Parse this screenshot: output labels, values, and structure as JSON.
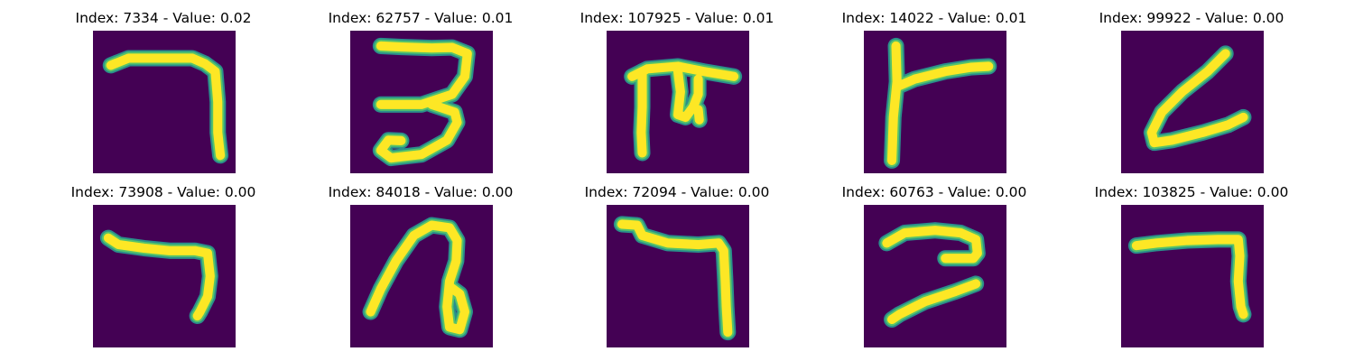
{
  "colors": {
    "background": "#440154",
    "edge": "#2a8f8b",
    "mid": "#55c36a",
    "stroke": "#fde725"
  },
  "images": [
    {
      "title": "Index: 7334 - Value: 0.02",
      "depicts": "handwritten-seven"
    },
    {
      "title": "Index: 62757 - Value: 0.01",
      "depicts": "handwritten-three"
    },
    {
      "title": "Index: 107925 - Value: 0.01",
      "depicts": "handwritten-glyph"
    },
    {
      "title": "Index: 14022 - Value: 0.01",
      "depicts": "handwritten-glyph"
    },
    {
      "title": "Index: 99922 - Value: 0.00",
      "depicts": "handwritten-glyph"
    },
    {
      "title": "Index: 73908 - Value: 0.00",
      "depicts": "handwritten-seven"
    },
    {
      "title": "Index: 84018 - Value: 0.00",
      "depicts": "handwritten-glyph"
    },
    {
      "title": "Index: 72094 - Value: 0.00",
      "depicts": "handwritten-seven"
    },
    {
      "title": "Index: 60763 - Value: 0.00",
      "depicts": "handwritten-glyph"
    },
    {
      "title": "Index: 103825 - Value: 0.00",
      "depicts": "handwritten-seven"
    }
  ]
}
